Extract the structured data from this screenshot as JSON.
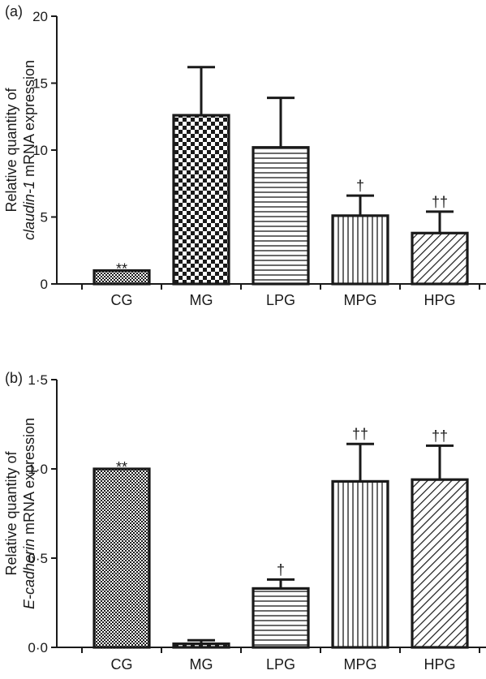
{
  "chart_data": [
    {
      "panel_label": "(a)",
      "type": "bar",
      "ylabel_lines": [
        [
          {
            "text": "Relative quantity of",
            "italic": false
          }
        ],
        [
          {
            "text": "claudin-1",
            "italic": true
          },
          {
            "text": " mRNA expression",
            "italic": false
          }
        ]
      ],
      "categories": [
        "CG",
        "MG",
        "LPG",
        "MPG",
        "HPG"
      ],
      "values": [
        1.0,
        12.6,
        10.2,
        5.1,
        3.8
      ],
      "errors": [
        0.0,
        3.6,
        3.7,
        1.5,
        1.6
      ],
      "significance": [
        "**",
        "",
        "",
        "†",
        "††"
      ],
      "fills": [
        "fine-check",
        "coarse-check",
        "horizontal",
        "vertical",
        "diagonal"
      ],
      "ylim": [
        0,
        20
      ],
      "yticks": [
        0,
        5,
        10,
        15,
        20
      ],
      "ytick_labels": [
        "0",
        "5",
        "10",
        "15",
        "20"
      ]
    },
    {
      "panel_label": "(b)",
      "type": "bar",
      "ylabel_lines": [
        [
          {
            "text": "Relative quantity of",
            "italic": false
          }
        ],
        [
          {
            "text": "E-cadherin",
            "italic": true
          },
          {
            "text": " mRNA expression",
            "italic": false
          }
        ]
      ],
      "categories": [
        "CG",
        "MG",
        "LPG",
        "MPG",
        "HPG"
      ],
      "values": [
        1.0,
        0.02,
        0.33,
        0.93,
        0.94
      ],
      "errors": [
        0.0,
        0.02,
        0.05,
        0.21,
        0.19
      ],
      "significance": [
        "**",
        "",
        "†",
        "††",
        "††"
      ],
      "fills": [
        "fine-check",
        "coarse-check",
        "horizontal",
        "vertical",
        "diagonal"
      ],
      "ylim": [
        0,
        1.5
      ],
      "yticks": [
        0,
        0.5,
        1.0,
        1.5
      ],
      "ytick_labels": [
        "0·0",
        "0·5",
        "1·0",
        "1·5"
      ]
    }
  ],
  "colors": {
    "ink": "#1a1a1a",
    "background": "#ffffff"
  }
}
